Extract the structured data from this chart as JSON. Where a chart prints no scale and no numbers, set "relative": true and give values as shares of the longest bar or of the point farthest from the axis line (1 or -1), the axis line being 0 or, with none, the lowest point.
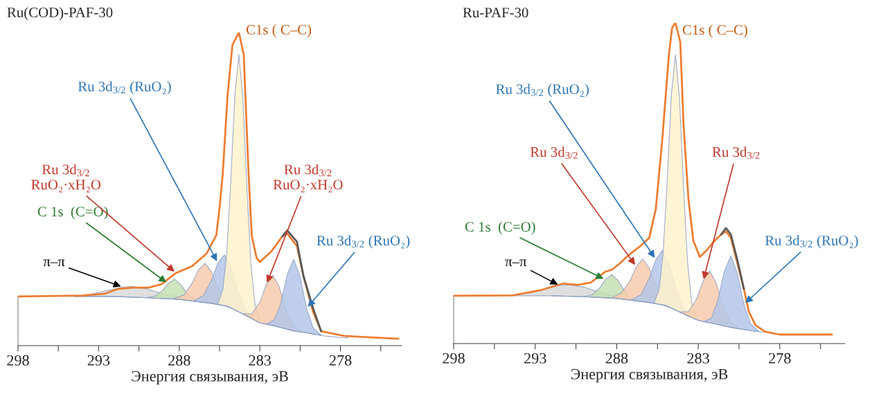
{
  "chart_data": [
    {
      "type": "area",
      "title": "Ru(COD)-PAF-30",
      "xlabel": "Энергия связывания, эВ",
      "relative": true,
      "xlim": [
        298,
        274.2
      ],
      "xticks": [
        298,
        {
          "value": 295.5,
          "label": null
        },
        293,
        {
          "value": 290.5,
          "label": null
        },
        288,
        {
          "value": 285.5,
          "label": null
        },
        283,
        {
          "value": 280.5,
          "label": null
        },
        278,
        {
          "value": 275.5,
          "label": null
        }
      ],
      "series": [
        {
          "type": "line",
          "color": "#8e9fc4",
          "x": [
            294.5,
            292,
            290,
            288,
            286,
            285,
            284,
            283,
            282,
            281,
            280,
            279,
            278,
            277.5
          ],
          "values": [
            0.157,
            0.157,
            0.153,
            0.148,
            0.135,
            0.126,
            0.1,
            0.073,
            0.062,
            0.048,
            0.04,
            0.031,
            0.026,
            0.025
          ]
        },
        {
          "color": "#d9d9d9",
          "x": [
            294.5,
            293.5,
            292.5,
            291.5,
            290.9,
            290,
            289,
            288,
            287
          ],
          "values": [
            0.159,
            0.164,
            0.176,
            0.187,
            0.189,
            0.181,
            0.165,
            0.153,
            0.143
          ]
        },
        {
          "color": "#c5e0b4",
          "x": [
            290,
            289.5,
            289,
            288.7,
            288.3,
            287.9,
            287.6,
            287.1,
            286.6
          ],
          "values": [
            0.154,
            0.158,
            0.178,
            0.198,
            0.212,
            0.195,
            0.173,
            0.148,
            0.14
          ]
        },
        {
          "color": "#f8cbad",
          "x": [
            288.3,
            287.7,
            287.2,
            286.8,
            286.4,
            286.0,
            285.6,
            285.1,
            284.5
          ],
          "values": [
            0.151,
            0.162,
            0.199,
            0.242,
            0.263,
            0.236,
            0.185,
            0.139,
            0.115
          ]
        },
        {
          "color": "#b4c7e7",
          "x": [
            287.1,
            286.5,
            286.0,
            285.6,
            285.2,
            284.8,
            284.4,
            283.9,
            283.3
          ],
          "values": [
            0.144,
            0.16,
            0.209,
            0.264,
            0.29,
            0.253,
            0.182,
            0.113,
            0.082
          ]
        },
        {
          "color": "#fff2cc",
          "x": [
            285.6,
            285.3,
            285.05,
            284.8,
            284.55,
            284.3,
            284.05,
            283.8,
            283.55,
            283.3,
            283.0
          ],
          "values": [
            0.135,
            0.177,
            0.295,
            0.528,
            0.801,
            0.93,
            0.789,
            0.503,
            0.259,
            0.132,
            0.08
          ]
        },
        {
          "color": "#f8cbad",
          "x": [
            284.0,
            283.5,
            283.0,
            282.6,
            282.2,
            281.8,
            281.4,
            280.9,
            280.4
          ],
          "values": [
            0.102,
            0.101,
            0.138,
            0.195,
            0.225,
            0.188,
            0.119,
            0.062,
            0.045
          ]
        },
        {
          "color": "#b4c7e7",
          "x": [
            282.6,
            282.1,
            281.7,
            281.3,
            280.9,
            280.5,
            280.1,
            279.7,
            279.2
          ],
          "values": [
            0.068,
            0.083,
            0.135,
            0.227,
            0.276,
            0.219,
            0.119,
            0.058,
            0.033
          ]
        },
        {
          "type": "line",
          "color": "#ed7d31",
          "x": [
            298,
            294,
            292.6,
            291.8,
            290.9,
            289.9,
            289.1,
            288.2,
            287.2,
            286.3,
            285.7,
            285.5,
            285.3,
            285.0,
            284.7,
            284.3,
            284.0,
            283.7,
            283.5,
            283.2,
            283.0,
            282.3,
            281.6,
            281.3,
            280.7,
            280.3,
            279.7,
            279.2,
            277.8,
            274.4
          ],
          "values": [
            0.157,
            0.16,
            0.166,
            0.181,
            0.185,
            0.185,
            0.196,
            0.232,
            0.254,
            0.294,
            0.353,
            0.44,
            0.55,
            0.8,
            0.96,
            1.0,
            0.93,
            0.55,
            0.35,
            0.28,
            0.267,
            0.3,
            0.349,
            0.358,
            0.318,
            0.223,
            0.108,
            0.046,
            0.031,
            0.022
          ]
        },
        {
          "type": "line",
          "color": "#595959",
          "x": [
            281.6,
            281.3,
            280.7,
            280.3,
            279.7,
            279.2
          ],
          "values": [
            0.349,
            0.368,
            0.332,
            0.223,
            0.12,
            0.046
          ]
        }
      ],
      "annotations": [
        {
          "text": "π–π",
          "x": 291.5,
          "y": 0.187
        },
        {
          "text": "C 1s  (C=O)",
          "x": 288.7,
          "y": 0.198
        },
        {
          "text": "Ru 3d$_{3/2}$\nRuO₂·xH₂O",
          "x": 288.2,
          "y": 0.232
        },
        {
          "text": "Ru 3d$_{3/2}$ (RuO₂)",
          "x": 285.6,
          "y": 0.264
        },
        {
          "text": "C1s ( C–C)",
          "x": 284.3,
          "y": 1.0
        },
        {
          "text": "Ru 3d$_{3/2}$\nRuO₂·xH₂O",
          "x": 282.6,
          "y": 0.195
        },
        {
          "text": "Ru 3d$_{3/2}$ (RuO₂)",
          "x": 280.1,
          "y": 0.119
        }
      ]
    },
    {
      "type": "area",
      "title": "Ru-PAF-30",
      "xlabel": "Энергия связывания, эВ",
      "relative": true,
      "xlim": [
        298,
        274
      ],
      "xticks": [
        298,
        {
          "value": 295.5,
          "label": null
        },
        293,
        {
          "value": 290.5,
          "label": null
        },
        288,
        {
          "value": 285.5,
          "label": null
        },
        283,
        {
          "value": 280.5,
          "label": null
        },
        278,
        {
          "value": 275.5,
          "label": null
        }
      ],
      "series": [
        {
          "type": "line",
          "color": "#8e9fc4",
          "x": [
            292,
            290,
            288,
            286,
            285,
            284,
            283,
            282,
            281,
            280,
            279
          ],
          "values": [
            0.149,
            0.146,
            0.141,
            0.128,
            0.119,
            0.095,
            0.072,
            0.062,
            0.05,
            0.042,
            0.035
          ]
        },
        {
          "color": "#d9d9d9",
          "x": [
            294.5,
            293.5,
            292.5,
            291.5,
            290.9,
            290,
            289,
            288,
            287
          ],
          "values": [
            0.151,
            0.157,
            0.169,
            0.181,
            0.183,
            0.176,
            0.159,
            0.146,
            0.136
          ]
        },
        {
          "color": "#c5e0b4",
          "x": [
            290,
            289.5,
            289,
            288.7,
            288.3,
            287.9,
            287.6,
            287.1,
            286.6
          ],
          "values": [
            0.147,
            0.152,
            0.176,
            0.199,
            0.215,
            0.196,
            0.17,
            0.141,
            0.132
          ]
        },
        {
          "color": "#f8cbad",
          "x": [
            288.3,
            287.7,
            287.2,
            286.8,
            286.4,
            286.0,
            285.6,
            285.1,
            284.5
          ],
          "values": [
            0.143,
            0.159,
            0.194,
            0.24,
            0.263,
            0.235,
            0.182,
            0.133,
            0.109
          ]
        },
        {
          "color": "#b4c7e7",
          "x": [
            287.1,
            286.5,
            286.0,
            285.6,
            285.2,
            284.8,
            284.4,
            283.9,
            283.3
          ],
          "values": [
            0.136,
            0.153,
            0.204,
            0.262,
            0.29,
            0.251,
            0.178,
            0.11,
            0.079
          ]
        },
        {
          "color": "#fff2cc",
          "x": [
            285.7,
            285.4,
            285.15,
            284.9,
            284.65,
            284.4,
            284.15,
            283.9,
            283.65,
            283.4,
            283.1
          ],
          "values": [
            0.128,
            0.168,
            0.284,
            0.509,
            0.775,
            0.9,
            0.765,
            0.487,
            0.251,
            0.127,
            0.079
          ]
        },
        {
          "color": "#f8cbad",
          "x": [
            284.1,
            283.6,
            283.1,
            282.7,
            282.3,
            281.9,
            281.5,
            281.0,
            280.5
          ],
          "values": [
            0.099,
            0.099,
            0.139,
            0.195,
            0.226,
            0.189,
            0.121,
            0.065,
            0.048
          ]
        },
        {
          "color": "#b4c7e7",
          "x": [
            282.7,
            282.2,
            281.8,
            281.4,
            281.0,
            280.6,
            280.2,
            279.8,
            279.3
          ],
          "values": [
            0.068,
            0.079,
            0.135,
            0.225,
            0.274,
            0.219,
            0.122,
            0.062,
            0.039
          ]
        },
        {
          "type": "line",
          "color": "#ed7d31",
          "x": [
            298,
            294.4,
            292.7,
            291.3,
            290.4,
            289.6,
            288.7,
            288.3,
            287.8,
            287.4,
            286.9,
            286.5,
            286.0,
            285.6,
            285.2,
            284.8,
            284.6,
            284.4,
            284.1,
            283.9,
            283.6,
            283.3,
            282.9,
            282.5,
            282.0,
            281.6,
            281.3,
            281.0,
            280.6,
            280.2,
            279.9,
            279.5,
            278.9,
            278.0,
            274.8
          ],
          "values": [
            0.149,
            0.15,
            0.166,
            0.187,
            0.183,
            0.19,
            0.224,
            0.23,
            0.25,
            0.27,
            0.29,
            0.306,
            0.33,
            0.42,
            0.64,
            0.9,
            0.985,
            1.0,
            0.94,
            0.68,
            0.45,
            0.32,
            0.27,
            0.29,
            0.32,
            0.34,
            0.35,
            0.33,
            0.25,
            0.17,
            0.1,
            0.058,
            0.037,
            0.028,
            0.028
          ]
        },
        {
          "type": "line",
          "color": "#595959",
          "x": [
            281.6,
            281.3,
            281.0,
            280.6,
            280.2
          ],
          "values": [
            0.34,
            0.36,
            0.34,
            0.26,
            0.17
          ]
        }
      ],
      "annotations": [
        {
          "text": "π–π",
          "x": 291.5,
          "y": 0.181
        },
        {
          "text": "C 1s  (C=O)",
          "x": 288.7,
          "y": 0.199
        },
        {
          "text": "Ru 3d$_{3/2}$",
          "x": 286.8,
          "y": 0.24
        },
        {
          "text": "Ru 3d$_{3/2}$ (RuO₂)",
          "x": 285.6,
          "y": 0.262
        },
        {
          "text": "C1s ( C–C)",
          "x": 284.4,
          "y": 1.0
        },
        {
          "text": "Ru 3d$_{3/2}$",
          "x": 282.7,
          "y": 0.195
        },
        {
          "text": "Ru 3d$_{3/2}$ (RuO₂)",
          "x": 280.2,
          "y": 0.122
        }
      ]
    }
  ]
}
